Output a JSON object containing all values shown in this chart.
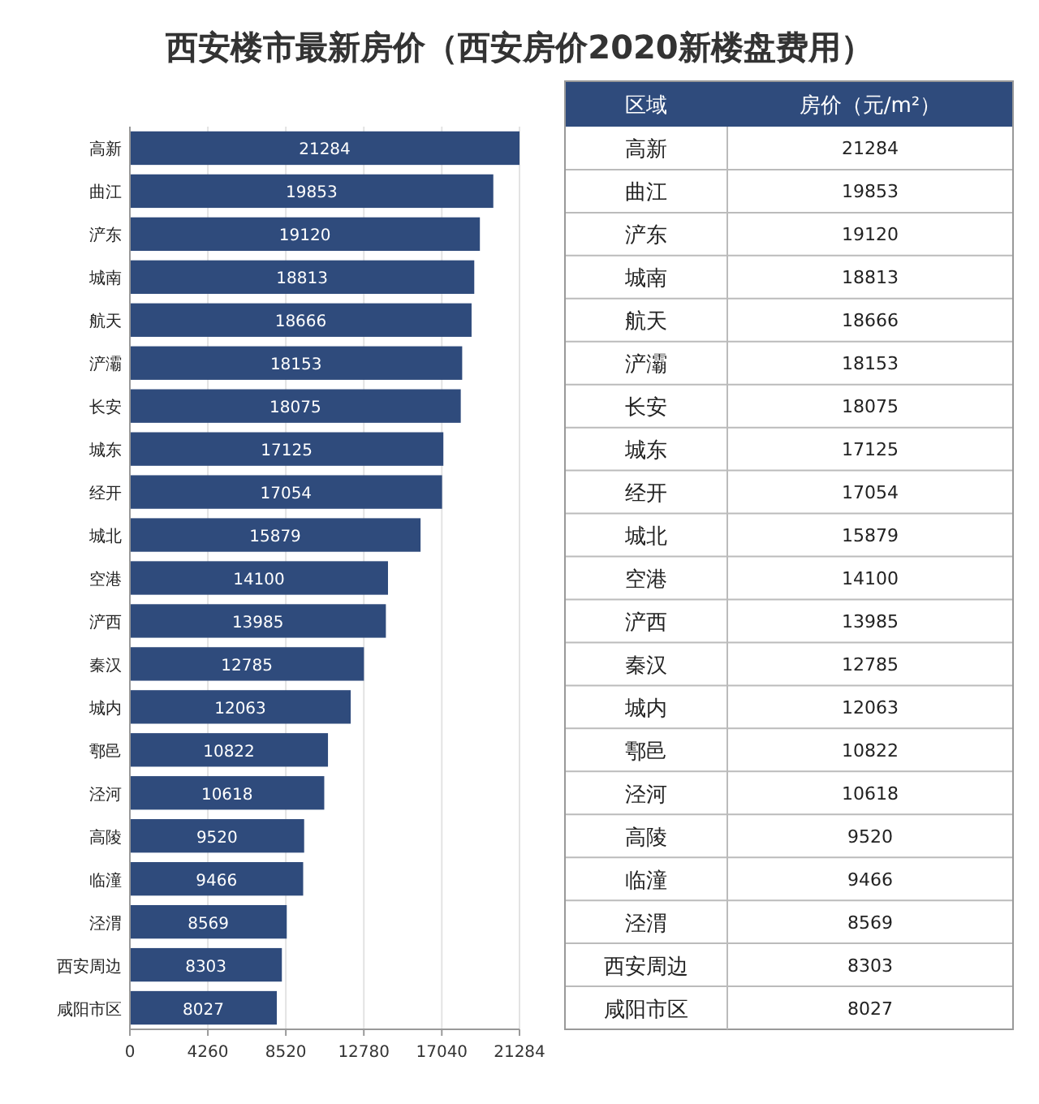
{
  "chart_data": [
    {
      "type": "bar",
      "orientation": "horizontal",
      "title": "西安楼市最新房价（西安房价2020新楼盘费用）",
      "categories": [
        "高新",
        "曲江",
        "浐东",
        "城南",
        "航天",
        "浐灞",
        "长安",
        "城东",
        "经开",
        "城北",
        "空港",
        "浐西",
        "秦汉",
        "城内",
        "鄠邑",
        "泾河",
        "高陵",
        "临潼",
        "泾渭",
        "西安周边",
        "咸阳市区"
      ],
      "values": [
        21284,
        19853,
        19120,
        18813,
        18666,
        18153,
        18075,
        17125,
        17054,
        15879,
        14100,
        13985,
        12785,
        12063,
        10822,
        10618,
        9520,
        9466,
        8569,
        8303,
        8027
      ],
      "color": "#2f4b7c",
      "xlim": [
        0,
        21284
      ],
      "xticks": [
        0,
        4260,
        8520,
        12780,
        17040,
        21284
      ],
      "grid": "x",
      "data_labels": true
    },
    {
      "type": "other",
      "color": "#2f4b7c",
      "annotations": [
        "区域",
        "房价（元/m²）",
        "高新",
        "21284",
        "曲江",
        "19853",
        "浐东",
        "19120",
        "城南",
        "18813",
        "航天",
        "18666",
        "浐灞",
        "18153",
        "长安",
        "18075",
        "城东",
        "17125",
        "经开",
        "17054",
        "城北",
        "15879",
        "空港",
        "14100",
        "浐西",
        "13985",
        "秦汉",
        "12785",
        "城内",
        "12063",
        "鄠邑",
        "10822",
        "泾河",
        "10618",
        "高陵",
        "9520",
        "临潼",
        "9466",
        "泾渭",
        "8569",
        "西安周边",
        "8303",
        "咸阳市区",
        "8027"
      ]
    }
  ]
}
